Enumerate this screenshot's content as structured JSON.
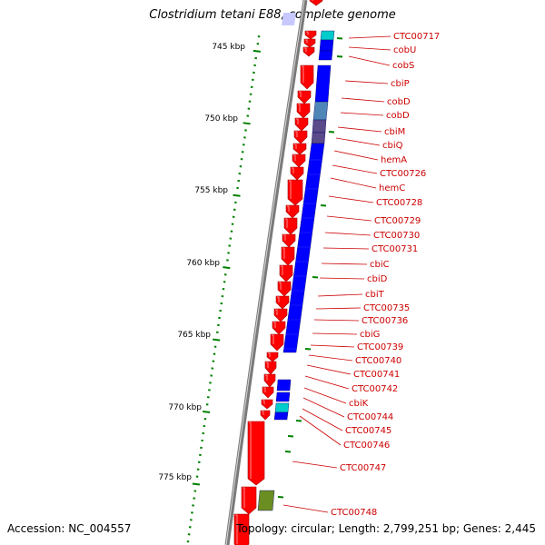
{
  "title": "Clostridium tetani E88, complete genome",
  "accession": "Accession: NC_004557",
  "topology": "Topology: circular; Length: 2,799,251 bp; Genes: 2,445",
  "colors": {
    "backbone": "#808080",
    "forward_gene": "#ff0000",
    "cog_blue": "#0000ff",
    "cog_cyan": "#00cccc",
    "cog_steel": "#4f86b8",
    "cog_purple": "#5a4a8a",
    "cog_olive": "#6b8e23",
    "tick": "#008000",
    "label": "#cc0000"
  },
  "scale": {
    "unit": "kbp",
    "labels": [
      "745 kbp",
      "750 kbp",
      "755 kbp",
      "760 kbp",
      "765 kbp",
      "770 kbp",
      "775 kbp"
    ]
  },
  "gene_labels": [
    "CTC00717",
    "cobU",
    "cobS",
    "cbiP",
    "cobD",
    "cobD",
    "cbiM",
    "cbiQ",
    "hemA",
    "CTC00726",
    "hemC",
    "CTC00728",
    "CTC00729",
    "CTC00730",
    "CTC00731",
    "cbiC",
    "cbiD",
    "cbiT",
    "CTC00735",
    "CTC00736",
    "cbiG",
    "CTC00739",
    "CTC00740",
    "CTC00741",
    "CTC00742",
    "cbiK",
    "CTC00744",
    "CTC00745",
    "CTC00746",
    "CTC00747",
    "CTC00748"
  ]
}
